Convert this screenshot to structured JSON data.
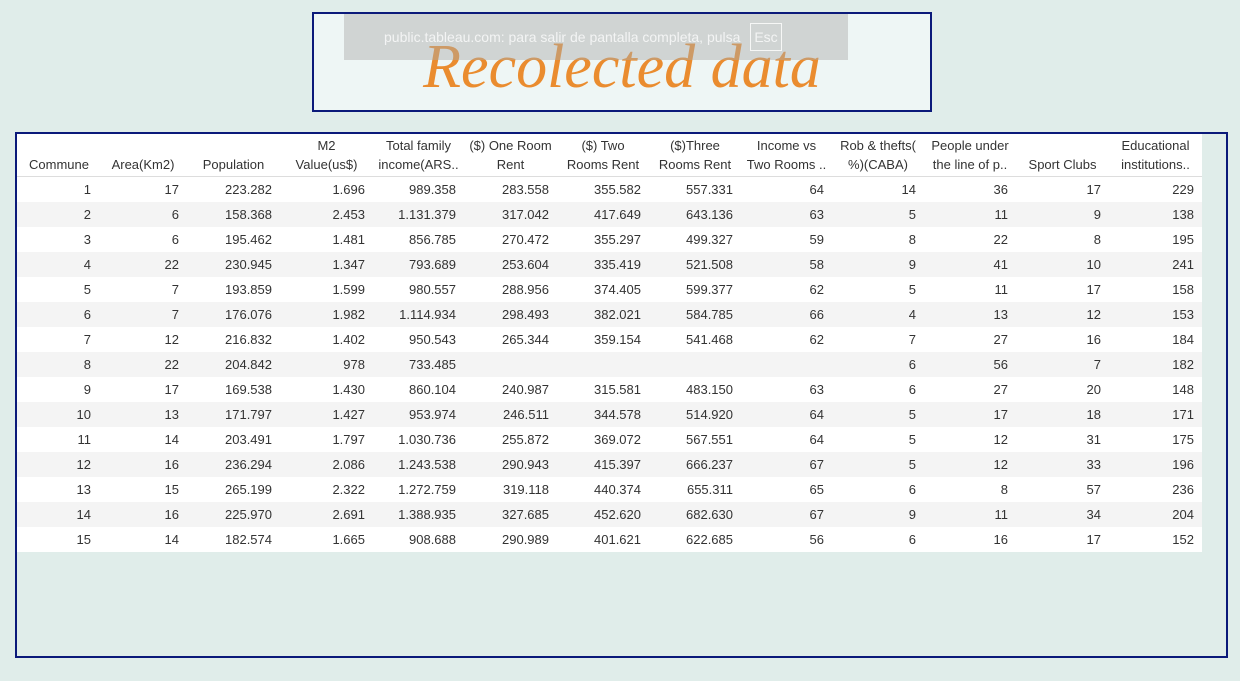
{
  "title": "Recolected data",
  "toast": {
    "text": "public.tableau.com: para salir de pantalla completa, pulsa",
    "key": "Esc"
  },
  "table": {
    "columns": [
      "Commune",
      "Area(Km2)",
      "Population",
      "M2\nValue(us$)",
      "Total family\nincome(ARS..",
      "($) One Room\nRent",
      "($) Two\nRooms Rent",
      "($)Three\nRooms Rent",
      "Income vs\nTwo Rooms ..",
      "Rob & thefts(\n%)(CABA)",
      "People under\nthe line of p..",
      "Sport Clubs",
      "Educational\ninstitutions.."
    ],
    "rows": [
      [
        "1",
        "17",
        "223.282",
        "1.696",
        "989.358",
        "283.558",
        "355.582",
        "557.331",
        "64",
        "14",
        "36",
        "17",
        "229"
      ],
      [
        "2",
        "6",
        "158.368",
        "2.453",
        "1.131.379",
        "317.042",
        "417.649",
        "643.136",
        "63",
        "5",
        "11",
        "9",
        "138"
      ],
      [
        "3",
        "6",
        "195.462",
        "1.481",
        "856.785",
        "270.472",
        "355.297",
        "499.327",
        "59",
        "8",
        "22",
        "8",
        "195"
      ],
      [
        "4",
        "22",
        "230.945",
        "1.347",
        "793.689",
        "253.604",
        "335.419",
        "521.508",
        "58",
        "9",
        "41",
        "10",
        "241"
      ],
      [
        "5",
        "7",
        "193.859",
        "1.599",
        "980.557",
        "288.956",
        "374.405",
        "599.377",
        "62",
        "5",
        "11",
        "17",
        "158"
      ],
      [
        "6",
        "7",
        "176.076",
        "1.982",
        "1.114.934",
        "298.493",
        "382.021",
        "584.785",
        "66",
        "4",
        "13",
        "12",
        "153"
      ],
      [
        "7",
        "12",
        "216.832",
        "1.402",
        "950.543",
        "265.344",
        "359.154",
        "541.468",
        "62",
        "7",
        "27",
        "16",
        "184"
      ],
      [
        "8",
        "22",
        "204.842",
        "978",
        "733.485",
        "",
        "",
        "",
        "",
        "6",
        "56",
        "7",
        "182"
      ],
      [
        "9",
        "17",
        "169.538",
        "1.430",
        "860.104",
        "240.987",
        "315.581",
        "483.150",
        "63",
        "6",
        "27",
        "20",
        "148"
      ],
      [
        "10",
        "13",
        "171.797",
        "1.427",
        "953.974",
        "246.511",
        "344.578",
        "514.920",
        "64",
        "5",
        "17",
        "18",
        "171"
      ],
      [
        "11",
        "14",
        "203.491",
        "1.797",
        "1.030.736",
        "255.872",
        "369.072",
        "567.551",
        "64",
        "5",
        "12",
        "31",
        "175"
      ],
      [
        "12",
        "16",
        "236.294",
        "2.086",
        "1.243.538",
        "290.943",
        "415.397",
        "666.237",
        "67",
        "5",
        "12",
        "33",
        "196"
      ],
      [
        "13",
        "15",
        "265.199",
        "2.322",
        "1.272.759",
        "319.118",
        "440.374",
        "655.311",
        "65",
        "6",
        "8",
        "57",
        "236"
      ],
      [
        "14",
        "16",
        "225.970",
        "2.691",
        "1.388.935",
        "327.685",
        "452.620",
        "682.630",
        "67",
        "9",
        "11",
        "34",
        "204"
      ],
      [
        "15",
        "14",
        "182.574",
        "1.665",
        "908.688",
        "290.989",
        "401.621",
        "622.685",
        "56",
        "6",
        "16",
        "17",
        "152"
      ]
    ]
  }
}
